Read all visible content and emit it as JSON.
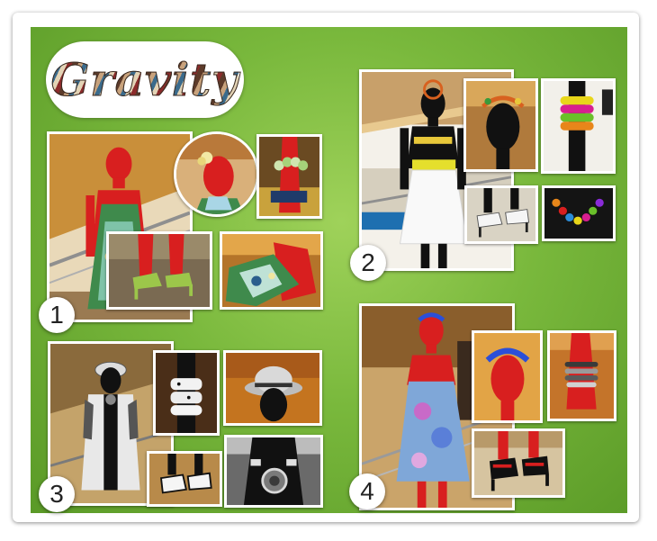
{
  "logo": {
    "text": "Gravity"
  },
  "collage_numbers": [
    "1",
    "2",
    "3",
    "4"
  ],
  "colors": {
    "background_green": "#79b83c",
    "frame": "#ffffff",
    "mannequin_red": "#d81f1f",
    "mannequin_black": "#111111"
  }
}
